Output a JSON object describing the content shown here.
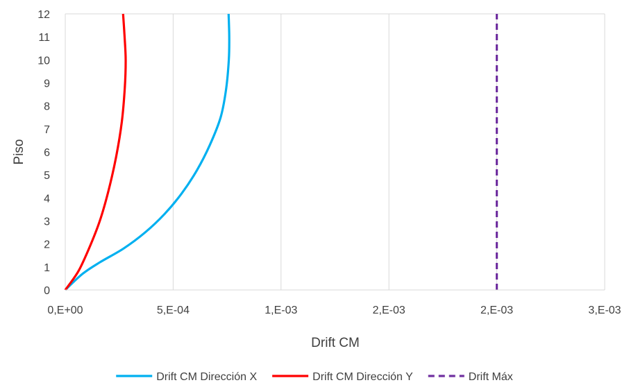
{
  "chart_data": {
    "type": "line",
    "title": "",
    "xlabel": "Drift CM",
    "ylabel": "Piso",
    "xlim": [
      0,
      0.0025
    ],
    "ylim": [
      0,
      12
    ],
    "x_tick_values": [
      0,
      0.0005,
      0.001,
      0.0015,
      0.002,
      0.0025
    ],
    "x_tick_labels": [
      "0,E+00",
      "5,E-04",
      "1,E-03",
      "2,E-03",
      "2,E-03",
      "3,E-03"
    ],
    "y_tick_values": [
      0,
      1,
      2,
      3,
      4,
      5,
      6,
      7,
      8,
      9,
      10,
      11,
      12
    ],
    "y_tick_labels": [
      "0",
      "1",
      "2",
      "3",
      "4",
      "5",
      "6",
      "7",
      "8",
      "9",
      "10",
      "11",
      "12"
    ],
    "grid": "vertical",
    "legend_position": "bottom",
    "series": [
      {
        "name": "Drift CM Dirección X",
        "color": "#00b0f0",
        "style": "solid",
        "points": [
          {
            "x": 0,
            "y": 0
          },
          {
            "x": 8e-05,
            "y": 0.7
          },
          {
            "x": 0.00016,
            "y": 1.2
          },
          {
            "x": 0.00027,
            "y": 1.8
          },
          {
            "x": 0.00037,
            "y": 2.5
          },
          {
            "x": 0.00046,
            "y": 3.3
          },
          {
            "x": 0.00054,
            "y": 4.2
          },
          {
            "x": 0.00061,
            "y": 5.2
          },
          {
            "x": 0.00067,
            "y": 6.3
          },
          {
            "x": 0.00072,
            "y": 7.5
          },
          {
            "x": 0.000745,
            "y": 8.7
          },
          {
            "x": 0.000758,
            "y": 10
          },
          {
            "x": 0.00076,
            "y": 11
          },
          {
            "x": 0.000757,
            "y": 12
          }
        ]
      },
      {
        "name": "Drift CM Dirección Y",
        "color": "#ff0000",
        "style": "solid",
        "points": [
          {
            "x": 0,
            "y": 0
          },
          {
            "x": 6e-05,
            "y": 0.8
          },
          {
            "x": 0.00011,
            "y": 1.8
          },
          {
            "x": 0.00016,
            "y": 3.0
          },
          {
            "x": 0.0002,
            "y": 4.3
          },
          {
            "x": 0.000236,
            "y": 5.8
          },
          {
            "x": 0.000262,
            "y": 7.3
          },
          {
            "x": 0.000276,
            "y": 8.8
          },
          {
            "x": 0.00028,
            "y": 10
          },
          {
            "x": 0.000275,
            "y": 11
          },
          {
            "x": 0.000268,
            "y": 12
          }
        ]
      },
      {
        "name": "Drift Máx",
        "color": "#7030a0",
        "style": "dashed",
        "points": [
          {
            "x": 0.002,
            "y": 0
          },
          {
            "x": 0.002,
            "y": 12
          }
        ]
      }
    ]
  }
}
